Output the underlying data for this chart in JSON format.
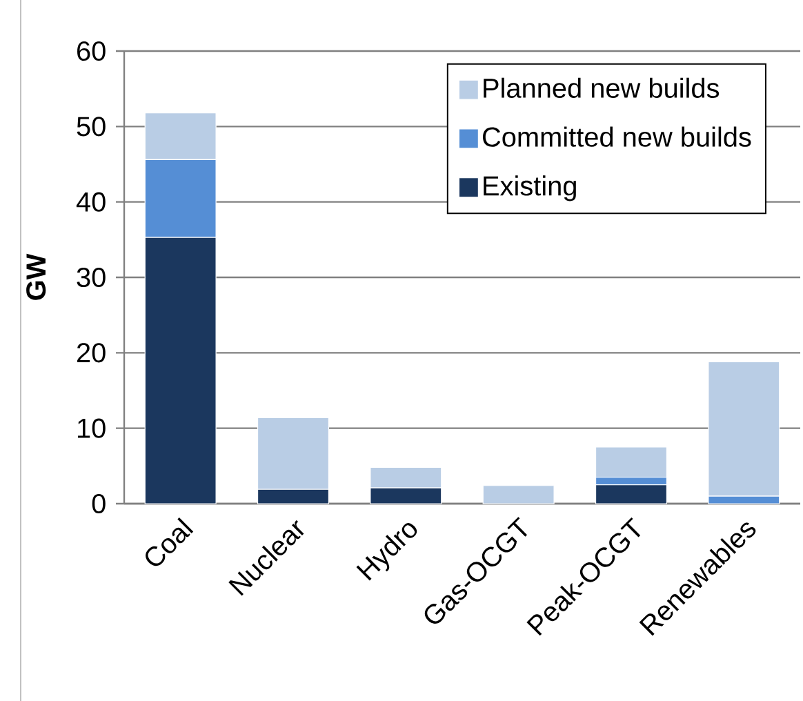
{
  "chart_data": {
    "type": "bar",
    "stacked": true,
    "ylabel": "GW",
    "categories": [
      "Coal",
      "Nuclear",
      "Hydro",
      "Gas-OCGT",
      "Peak-OCGT",
      "Renewables"
    ],
    "series": [
      {
        "name": "Existing",
        "color": "#1b375e",
        "values": [
          35.3,
          1.9,
          2.1,
          0,
          2.5,
          0
        ]
      },
      {
        "name": "Committed new builds",
        "color": "#558ed5",
        "values": [
          10.3,
          0,
          0,
          0,
          1.0,
          1.0
        ]
      },
      {
        "name": "Planned new builds",
        "color": "#b9cde5",
        "values": [
          6.2,
          9.5,
          2.7,
          2.4,
          4.0,
          17.8
        ]
      }
    ],
    "ylim": [
      0,
      60
    ],
    "yticks": [
      0,
      10,
      20,
      30,
      40,
      50,
      60
    ],
    "grid": "y",
    "legend": "top right"
  }
}
